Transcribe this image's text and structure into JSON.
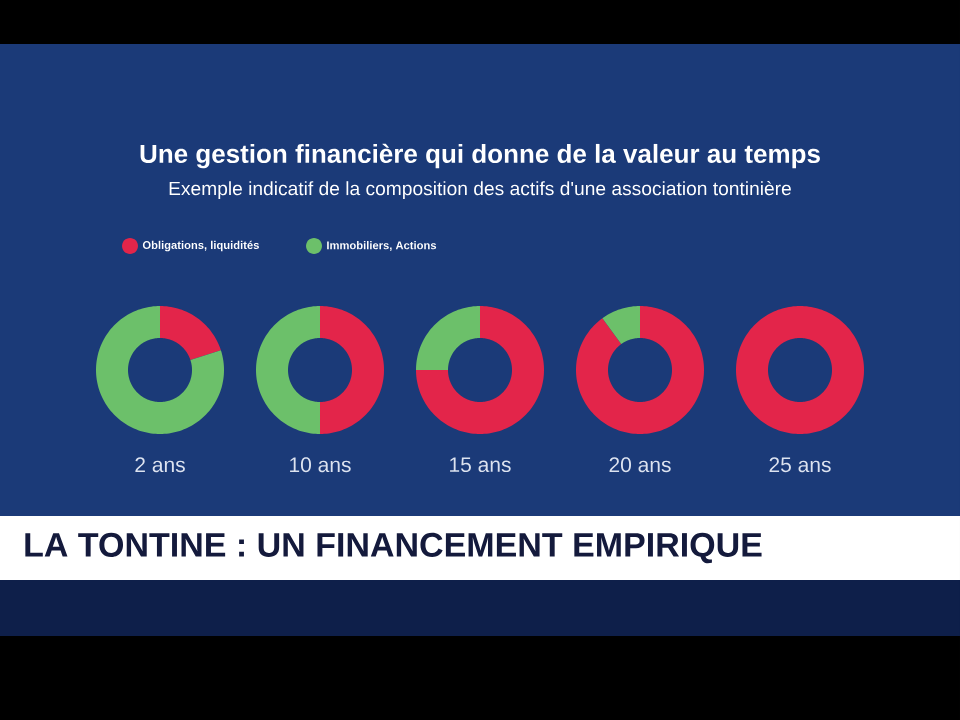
{
  "chart_data": [
    {
      "type": "donut",
      "title": "Une gestion financière qui donne de la valeur au temps",
      "subtitle": "Exemple indicatif de la composition des actifs d'une association tontinière",
      "annotations": [
        "LA TONTINE : UN FINANCEMENT EMPIRIQUE"
      ],
      "legend": "top",
      "xlabel": "2 ans",
      "categories": [
        "Obligations, liquidités",
        "Immobiliers, Actions"
      ],
      "values": [
        20,
        80
      ],
      "colors": [
        "#e3254a",
        "#6cc06a"
      ]
    },
    {
      "type": "donut",
      "xlabel": "10 ans",
      "values": [
        50,
        50
      ],
      "colors": [
        "#e3254a",
        "#6cc06a"
      ]
    },
    {
      "type": "donut",
      "xlabel": "15 ans",
      "values": [
        75,
        25
      ],
      "colors": [
        "#e3254a",
        "#6cc06a"
      ]
    },
    {
      "type": "donut",
      "xlabel": "20 ans",
      "values": [
        90,
        10
      ],
      "colors": [
        "#e3254a",
        "#6cc06a"
      ]
    },
    {
      "type": "donut",
      "xlabel": "25 ans",
      "values": [
        100,
        0
      ],
      "colors": [
        "#e3254a",
        "#6cc06a"
      ]
    }
  ]
}
